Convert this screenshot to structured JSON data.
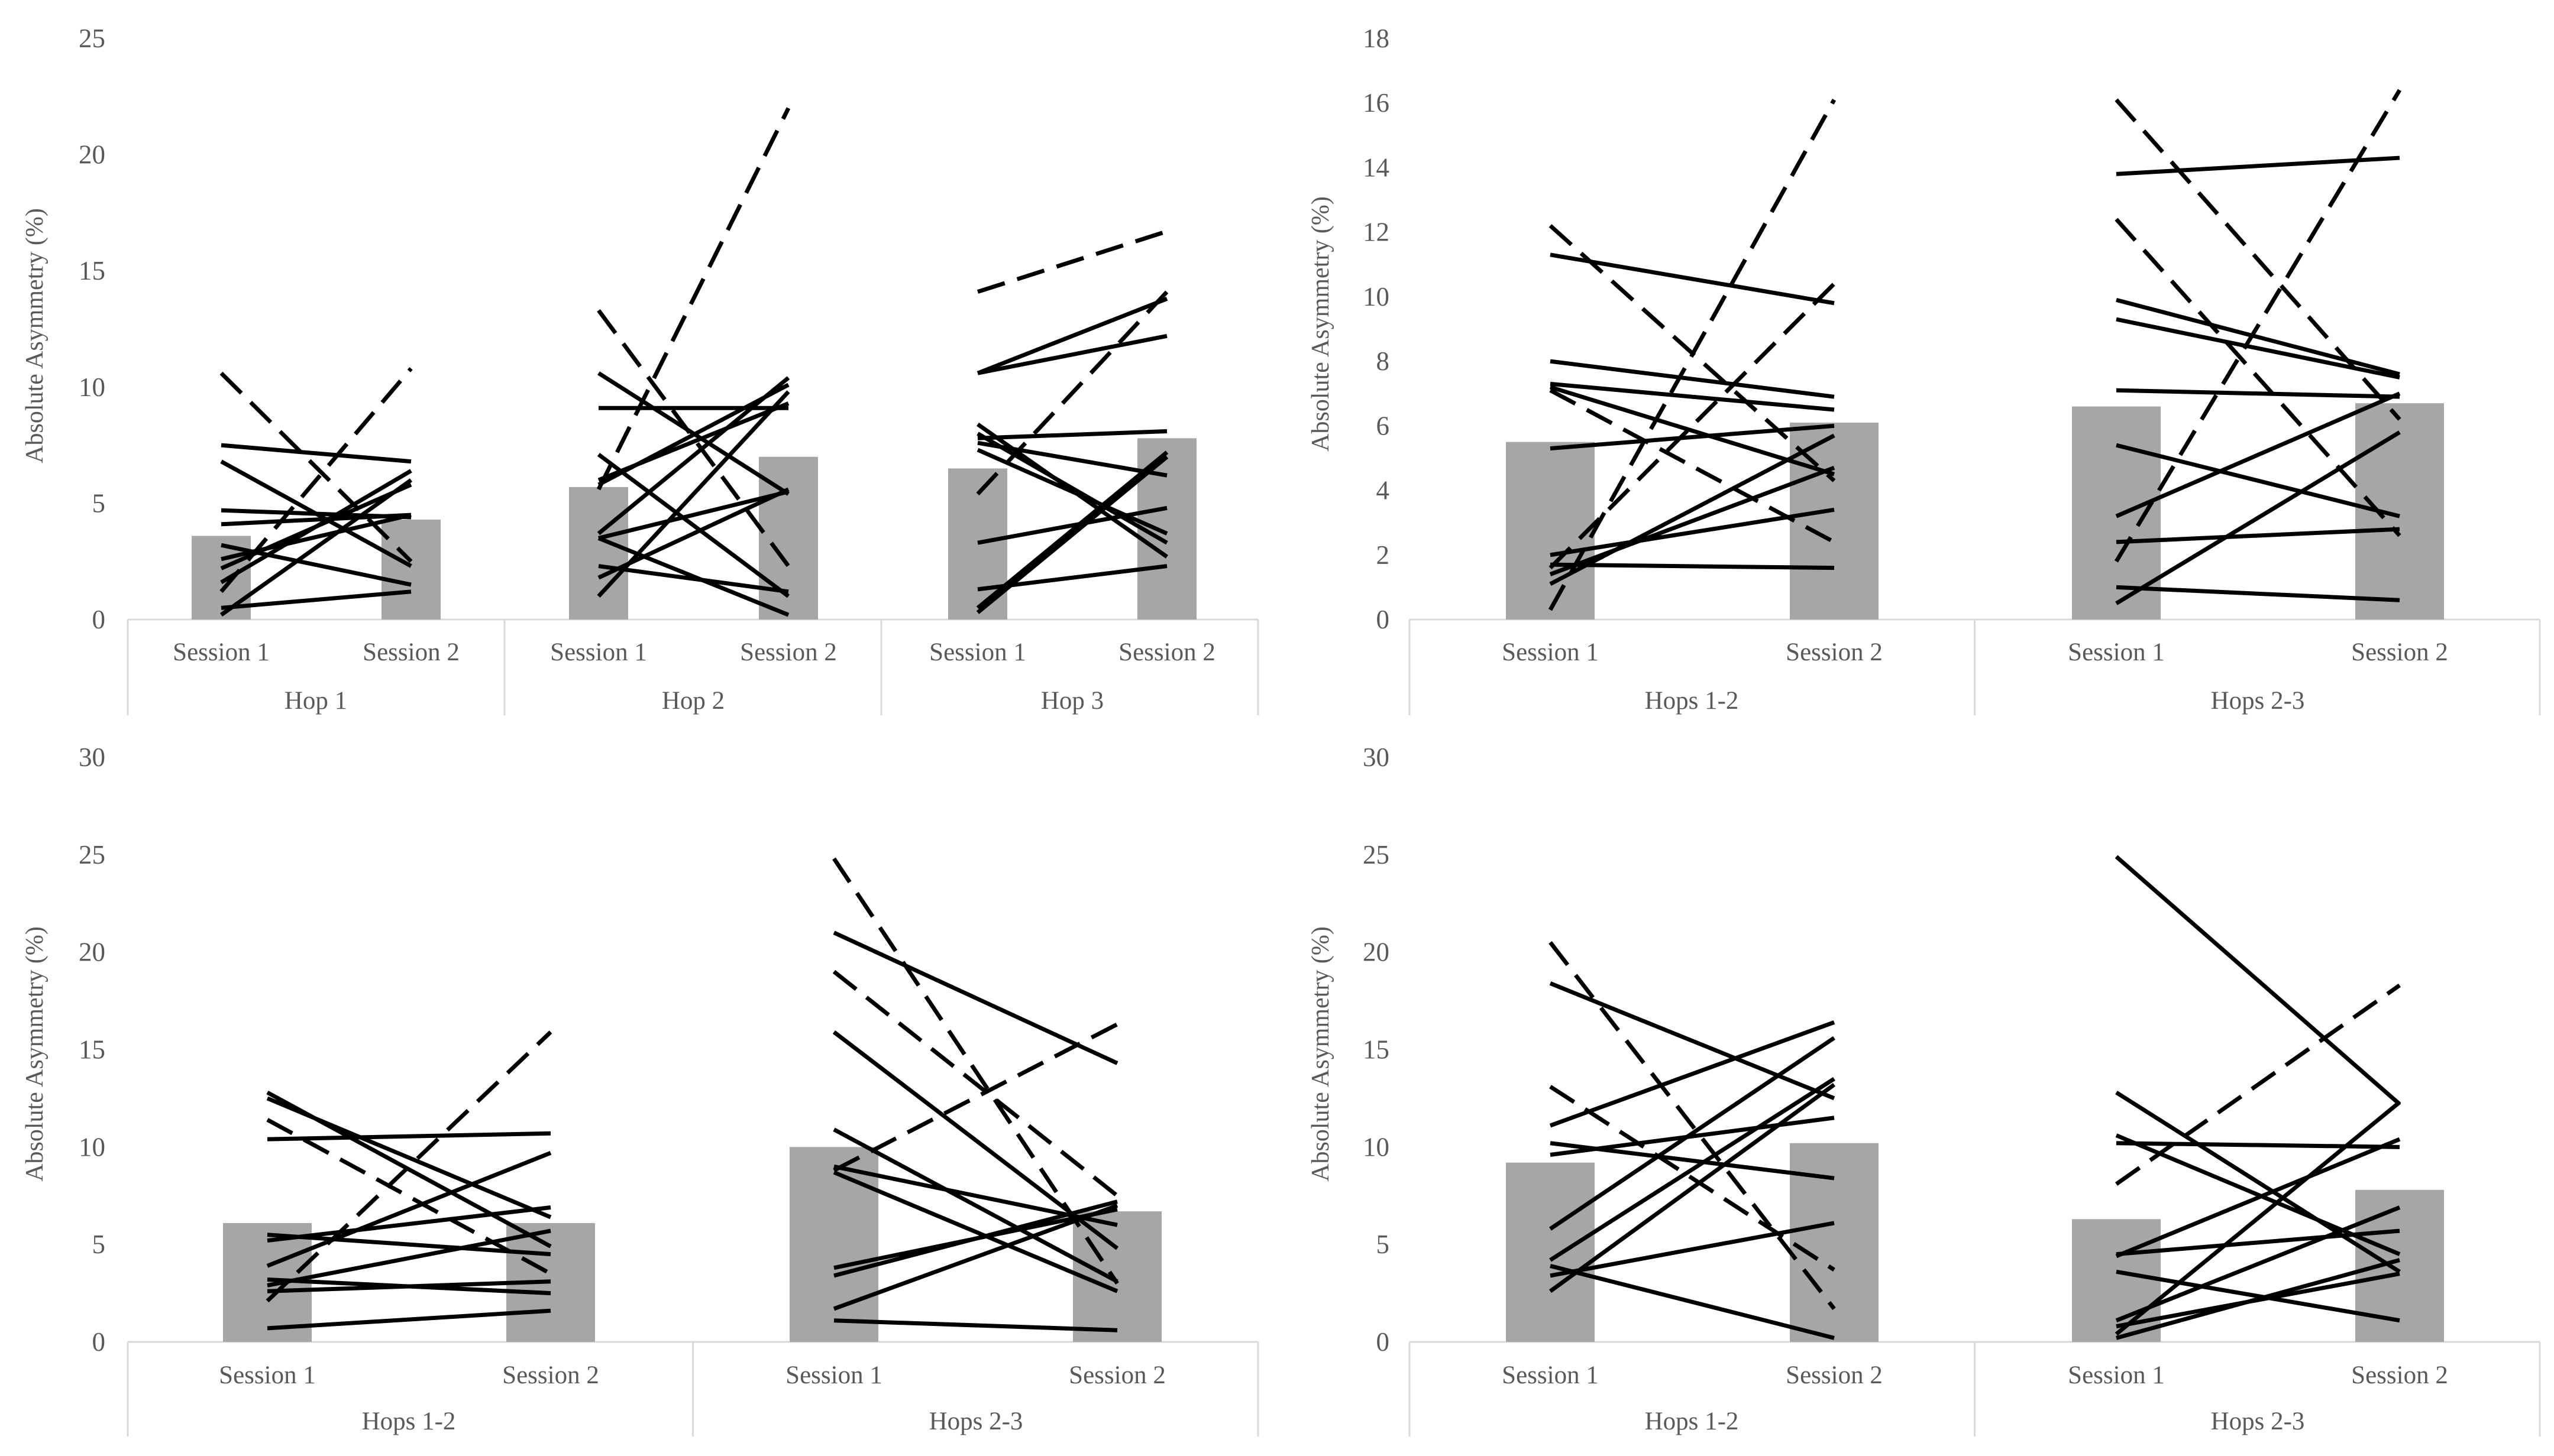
{
  "colors": {
    "bar": "#a6a6a6",
    "line": "#000000",
    "axis": "#d9d9d9",
    "text": "#595959"
  },
  "chart_data": [
    {
      "type": "bar",
      "ylabel": "Absolute Asymmetry (%)",
      "ylim": [
        0,
        25
      ],
      "yticks": [
        0,
        5,
        10,
        15,
        20,
        25
      ],
      "categories": [
        "Session 1",
        "Session 2"
      ],
      "groups": [
        {
          "name": "Hop 1",
          "means": [
            3.6,
            4.3
          ],
          "solid": [
            [
              7.5,
              6.8
            ],
            [
              6.8,
              2.3
            ],
            [
              4.7,
              4.4
            ],
            [
              4.1,
              4.5
            ],
            [
              3.2,
              1.5
            ],
            [
              2.6,
              4.5
            ],
            [
              2.2,
              5.8
            ],
            [
              1.6,
              6.4
            ],
            [
              0.5,
              1.2
            ],
            [
              0.2,
              6.0
            ]
          ],
          "dashed": [
            [
              10.6,
              2.5
            ],
            [
              1.2,
              10.8
            ]
          ]
        },
        {
          "name": "Hop 2",
          "means": [
            5.7,
            7.0
          ],
          "solid": [
            [
              10.6,
              5.4
            ],
            [
              9.1,
              9.1
            ],
            [
              7.1,
              1.0
            ],
            [
              6.0,
              9.3
            ],
            [
              5.8,
              10.1
            ],
            [
              3.7,
              10.4
            ],
            [
              3.5,
              0.2
            ],
            [
              3.5,
              5.5
            ],
            [
              2.3,
              1.2
            ],
            [
              1.8,
              5.6
            ],
            [
              1.0,
              9.8
            ]
          ],
          "dashed": [
            [
              13.3,
              2.3
            ],
            [
              5.6,
              22.0
            ]
          ]
        },
        {
          "name": "Hop 3",
          "means": [
            6.5,
            7.8
          ],
          "solid": [
            [
              10.6,
              13.8
            ],
            [
              10.6,
              12.2
            ],
            [
              8.4,
              2.7
            ],
            [
              8.0,
              3.3
            ],
            [
              7.8,
              8.1
            ],
            [
              7.6,
              6.2
            ],
            [
              7.3,
              3.7
            ],
            [
              3.3,
              4.8
            ],
            [
              1.3,
              2.3
            ],
            [
              0.5,
              7.2
            ],
            [
              0.3,
              7.0
            ]
          ],
          "dashed": [
            [
              14.1,
              16.7
            ],
            [
              5.4,
              14.1
            ]
          ]
        }
      ]
    },
    {
      "type": "bar",
      "ylabel": "Absolute Asymmetry (%)",
      "ylim": [
        0,
        18
      ],
      "yticks": [
        0,
        2,
        4,
        6,
        8,
        10,
        12,
        14,
        16,
        18
      ],
      "categories": [
        "Session 1",
        "Session 2"
      ],
      "groups": [
        {
          "name": "Hops 1-2",
          "means": [
            5.5,
            6.1
          ],
          "solid": [
            [
              11.3,
              9.8
            ],
            [
              8.0,
              6.9
            ],
            [
              7.3,
              6.5
            ],
            [
              7.2,
              4.5
            ],
            [
              5.3,
              6.0
            ],
            [
              2.0,
              3.4
            ],
            [
              1.7,
              1.6
            ],
            [
              1.4,
              4.7
            ],
            [
              1.1,
              5.7
            ]
          ],
          "dashed": [
            [
              12.2,
              4.3
            ],
            [
              7.1,
              2.4
            ],
            [
              1.6,
              10.4
            ],
            [
              0.3,
              16.1
            ]
          ]
        },
        {
          "name": "Hops 2-3",
          "means": [
            6.6,
            6.7
          ],
          "solid": [
            [
              13.8,
              14.3
            ],
            [
              9.9,
              7.6
            ],
            [
              9.3,
              7.5
            ],
            [
              7.1,
              6.9
            ],
            [
              5.4,
              3.2
            ],
            [
              3.2,
              7.0
            ],
            [
              2.4,
              2.8
            ],
            [
              1.0,
              0.6
            ],
            [
              0.5,
              5.8
            ]
          ],
          "dashed": [
            [
              16.1,
              6.2
            ],
            [
              12.4,
              2.6
            ],
            [
              1.8,
              16.4
            ]
          ]
        }
      ]
    },
    {
      "type": "bar",
      "ylabel": "Absolute Asymmetry (%)",
      "ylim": [
        0,
        30
      ],
      "yticks": [
        0,
        5,
        10,
        15,
        20,
        25,
        30
      ],
      "categories": [
        "Session 1",
        "Session 2"
      ],
      "groups": [
        {
          "name": "Hops 1-2",
          "means": [
            6.1,
            6.1
          ],
          "solid": [
            [
              12.8,
              4.9
            ],
            [
              12.5,
              6.4
            ],
            [
              10.4,
              10.7
            ],
            [
              5.5,
              4.5
            ],
            [
              5.2,
              6.9
            ],
            [
              3.9,
              9.7
            ],
            [
              3.2,
              2.5
            ],
            [
              2.9,
              5.7
            ],
            [
              2.6,
              3.1
            ],
            [
              0.7,
              1.6
            ]
          ],
          "dashed": [
            [
              11.4,
              3.5
            ],
            [
              2.1,
              15.9
            ]
          ]
        },
        {
          "name": "Hops 2-3",
          "means": [
            10.0,
            6.7
          ],
          "solid": [
            [
              21.0,
              14.3
            ],
            [
              15.9,
              4.8
            ],
            [
              10.9,
              3.1
            ],
            [
              9.0,
              6.0
            ],
            [
              8.7,
              2.6
            ],
            [
              3.8,
              6.8
            ],
            [
              3.4,
              7.2
            ],
            [
              1.7,
              7.0
            ],
            [
              1.1,
              0.6
            ]
          ],
          "dashed": [
            [
              24.8,
              3.0
            ],
            [
              19.0,
              7.5
            ],
            [
              8.8,
              16.3
            ]
          ]
        }
      ]
    },
    {
      "type": "bar",
      "ylabel": "Absolute Asymmetry (%)",
      "ylim": [
        0,
        30
      ],
      "yticks": [
        0,
        5,
        10,
        15,
        20,
        25,
        30
      ],
      "categories": [
        "Session 1",
        "Session 2"
      ],
      "groups": [
        {
          "name": "Hops 1-2",
          "means": [
            9.2,
            10.2
          ],
          "solid": [
            [
              18.4,
              12.5
            ],
            [
              11.1,
              16.4
            ],
            [
              10.2,
              8.4
            ],
            [
              9.6,
              11.5
            ],
            [
              5.8,
              15.6
            ],
            [
              4.2,
              13.5
            ],
            [
              3.4,
              6.1
            ],
            [
              2.6,
              13.2
            ],
            [
              3.9,
              0.2
            ]
          ],
          "dashed": [
            [
              20.5,
              1.7
            ],
            [
              13.1,
              3.7
            ]
          ]
        },
        {
          "name": "Hops 2-3",
          "means": [
            6.3,
            7.8
          ],
          "solid": [
            [
              24.9,
              12.2
            ],
            [
              12.8,
              3.6
            ],
            [
              10.2,
              10.0
            ],
            [
              10.6,
              4.5
            ],
            [
              4.5,
              5.7
            ],
            [
              4.4,
              10.4
            ],
            [
              3.6,
              1.1
            ],
            [
              1.1,
              6.9
            ],
            [
              0.8,
              3.5
            ],
            [
              0.4,
              12.3
            ],
            [
              0.2,
              4.2
            ]
          ],
          "dashed": [
            [
              8.1,
              18.3
            ]
          ]
        }
      ]
    }
  ]
}
